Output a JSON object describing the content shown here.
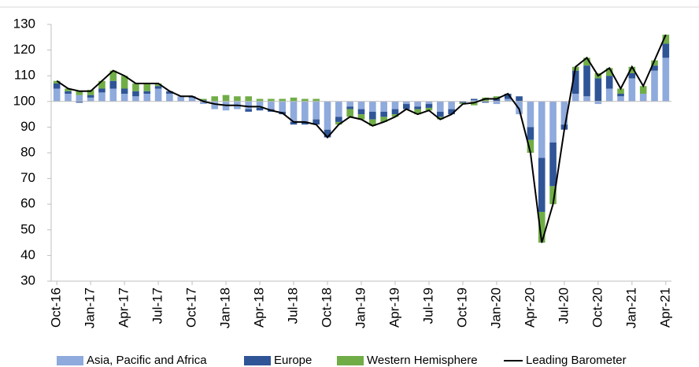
{
  "chart_data": {
    "type": "bar",
    "categories": [
      "Oct-16",
      null,
      null,
      "Jan-17",
      null,
      null,
      "Apr-17",
      null,
      null,
      "Jul-17",
      null,
      null,
      "Oct-17",
      null,
      null,
      "Jan-18",
      null,
      null,
      "Apr-18",
      null,
      null,
      "Jul-18",
      null,
      null,
      "Oct-18",
      null,
      null,
      "Jan-19",
      null,
      null,
      "Apr-19",
      null,
      null,
      "Jul-19",
      null,
      null,
      "Oct-19",
      null,
      null,
      "Jan-20",
      null,
      null,
      "Apr-20",
      null,
      null,
      "Jul-20",
      null,
      null,
      "Oct-20",
      null,
      null,
      "Jan-21",
      null,
      null,
      "Apr-21"
    ],
    "base": 100,
    "series": [
      {
        "name": "Asia, Pacific and Africa",
        "color": "#8faadc",
        "values": [
          5,
          3,
          2.5,
          1.5,
          3.5,
          5,
          3,
          2,
          3,
          5,
          3,
          2,
          1.5,
          -1,
          -3,
          -3.5,
          -3,
          -3,
          -2.5,
          -3,
          -4,
          -8,
          -8,
          -7,
          -11,
          -6,
          -2,
          -3,
          -4,
          -4,
          -3,
          -1,
          -2,
          -1,
          -4,
          -3,
          0,
          0.5,
          0,
          -1,
          1,
          -5,
          -10,
          -22,
          -16,
          -9,
          3,
          2,
          -1,
          5,
          2,
          9,
          3,
          12,
          17
        ]
      },
      {
        "name": "Europe",
        "color": "#2f5597",
        "values": [
          2,
          1,
          -0.5,
          1,
          1.5,
          3,
          2,
          2,
          1,
          1,
          1,
          0,
          0.5,
          0.5,
          0,
          0,
          0,
          -1,
          -1,
          -1,
          -1,
          -1,
          -1,
          -2,
          -3,
          -2,
          -1,
          -2,
          -3,
          -2,
          -2,
          -2,
          -1,
          -1.5,
          -2,
          -2,
          -0.5,
          0.5,
          -0.5,
          1,
          2,
          2,
          -5,
          -21,
          -17,
          -2,
          9,
          12,
          9,
          5,
          1,
          2,
          0,
          2,
          5.5
        ]
      },
      {
        "name": "Western Hemisphere",
        "color": "#70ad47",
        "values": [
          1,
          1,
          1.5,
          2,
          3,
          4,
          5,
          3,
          3,
          1,
          0,
          0,
          0,
          0.5,
          2,
          2.5,
          2,
          2,
          1,
          1,
          1,
          1.5,
          1,
          1,
          0,
          -1,
          -3,
          -2,
          -2.5,
          -2,
          -1,
          0,
          -2,
          -1,
          -1,
          0,
          -0.5,
          -1.5,
          1.5,
          1,
          0,
          0,
          -5,
          -12,
          -7,
          0,
          1.5,
          3,
          2,
          3,
          2,
          2.5,
          3,
          2,
          3.5
        ]
      },
      {
        "name": "Leading Barometer",
        "type": "line",
        "color": "#000000",
        "values": [
          108,
          105,
          104,
          104,
          108,
          112,
          110,
          107,
          107,
          107,
          104,
          102,
          102,
          100,
          99,
          98.5,
          98.5,
          98,
          98,
          96.5,
          95.5,
          92,
          92,
          91,
          86,
          91,
          94,
          93,
          90.5,
          92,
          94,
          97,
          95,
          96.5,
          93,
          95,
          99,
          99.5,
          101,
          101,
          103,
          97,
          80,
          45,
          60,
          89,
          113.5,
          117,
          110,
          113,
          105,
          113.5,
          106,
          116,
          126
        ]
      }
    ],
    "ylim": [
      30,
      130
    ],
    "yticks": [
      30,
      40,
      50,
      60,
      70,
      80,
      90,
      100,
      110,
      120,
      130
    ]
  }
}
